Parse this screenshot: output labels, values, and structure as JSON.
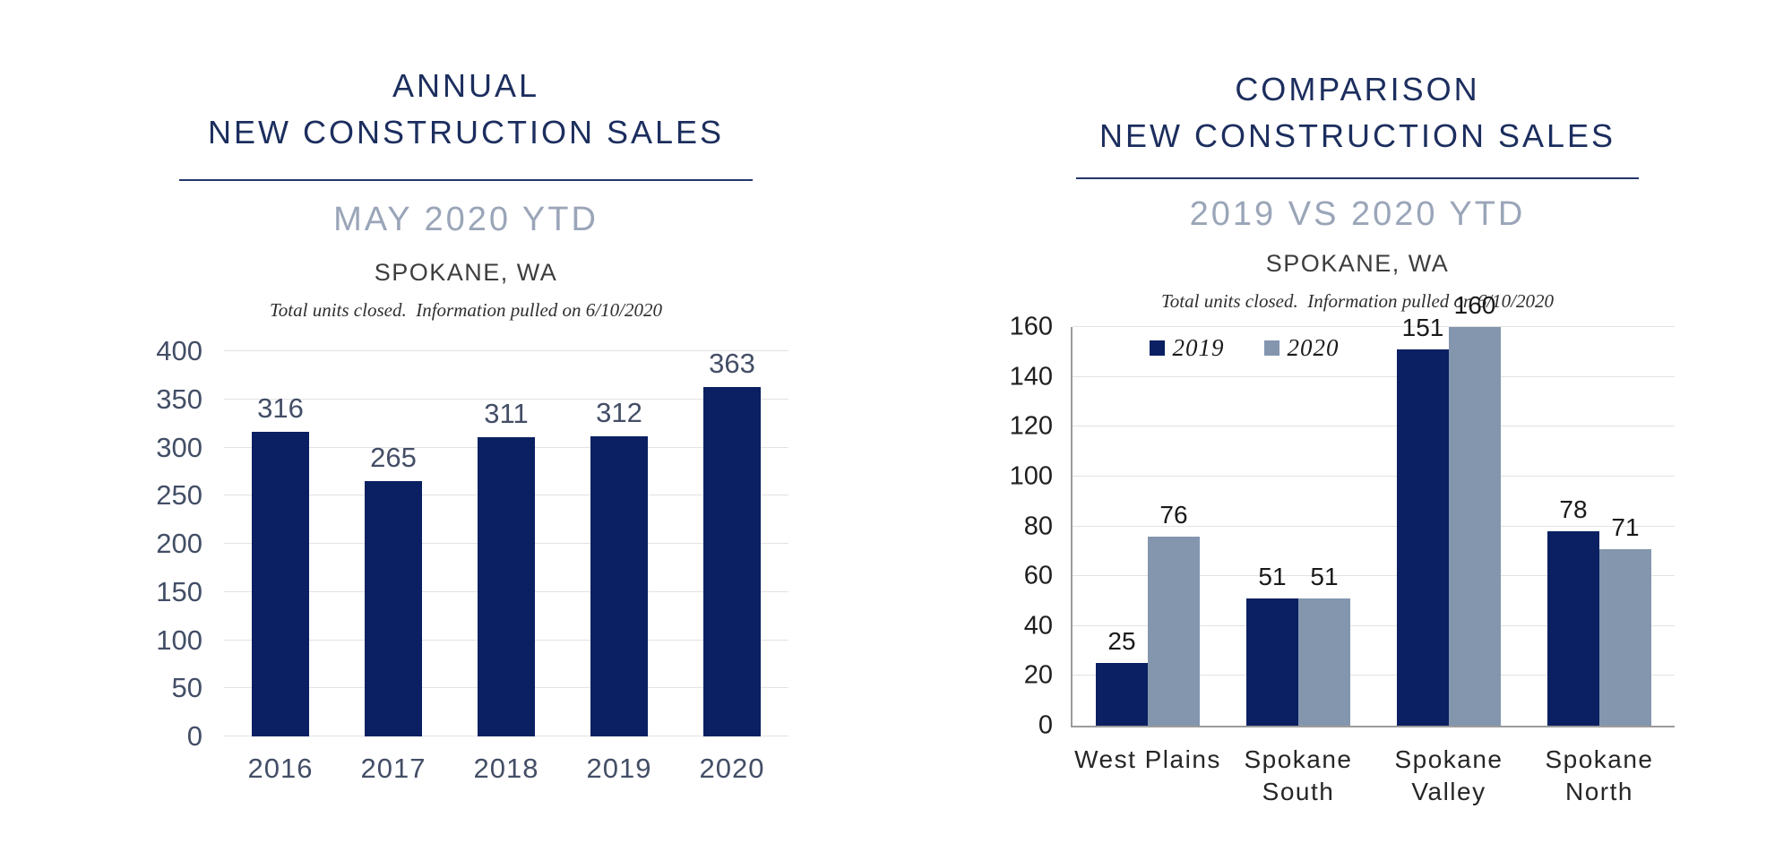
{
  "colors": {
    "title_navy": "#1c2e5e",
    "subtitle_gray_blue": "#9aa5b8",
    "bar_navy": "#0a2062",
    "bar_gray_blue": "#8496ae",
    "gridline": "#e2e2e2",
    "axis_line": "#9b9b9b",
    "left_chart_labels": "#434e66",
    "right_chart_labels": "#1a1a1a"
  },
  "left_panel": {
    "title_line1": "ANNUAL",
    "title_line2": "NEW CONSTRUCTION SALES",
    "subtitle": "MAY 2020 YTD",
    "location": "SPOKANE, WA",
    "note": "Total units closed.  Information pulled on 6/10/2020"
  },
  "right_panel": {
    "title_line1": "COMPARISON",
    "title_line2": "NEW CONSTRUCTION SALES",
    "subtitle": "2019 VS 2020 YTD",
    "location": "SPOKANE, WA",
    "note": "Total units closed.  Information pulled on 6/10/2020"
  },
  "chart_data": [
    {
      "type": "bar",
      "title": "ANNUAL NEW CONSTRUCTION SALES - MAY 2020 YTD - SPOKANE, WA",
      "categories": [
        "2016",
        "2017",
        "2018",
        "2019",
        "2020"
      ],
      "values": [
        316,
        265,
        311,
        312,
        363
      ],
      "bar_color": "#0a2062",
      "xlabel": "",
      "ylabel": "",
      "ylim": [
        0,
        400
      ],
      "yticks": [
        0,
        50,
        100,
        150,
        200,
        250,
        300,
        350,
        400
      ],
      "grid": true,
      "axis_lines": false,
      "legend_position": "none",
      "data_labels": true
    },
    {
      "type": "bar",
      "title": "COMPARISON NEW CONSTRUCTION SALES - 2019 VS 2020 YTD - SPOKANE, WA",
      "categories": [
        "West Plains",
        "Spokane South",
        "Spokane Valley",
        "Spokane North"
      ],
      "series": [
        {
          "name": "2019",
          "color": "#0a2062",
          "values": [
            25,
            51,
            151,
            78
          ]
        },
        {
          "name": "2020",
          "color": "#8496ae",
          "values": [
            76,
            51,
            160,
            71
          ]
        }
      ],
      "xlabel": "",
      "ylabel": "",
      "ylim": [
        0,
        160
      ],
      "yticks": [
        0,
        20,
        40,
        60,
        80,
        100,
        120,
        140,
        160
      ],
      "grid": true,
      "axis_lines": true,
      "legend_position": "top-left-of-center",
      "data_labels": true
    }
  ]
}
